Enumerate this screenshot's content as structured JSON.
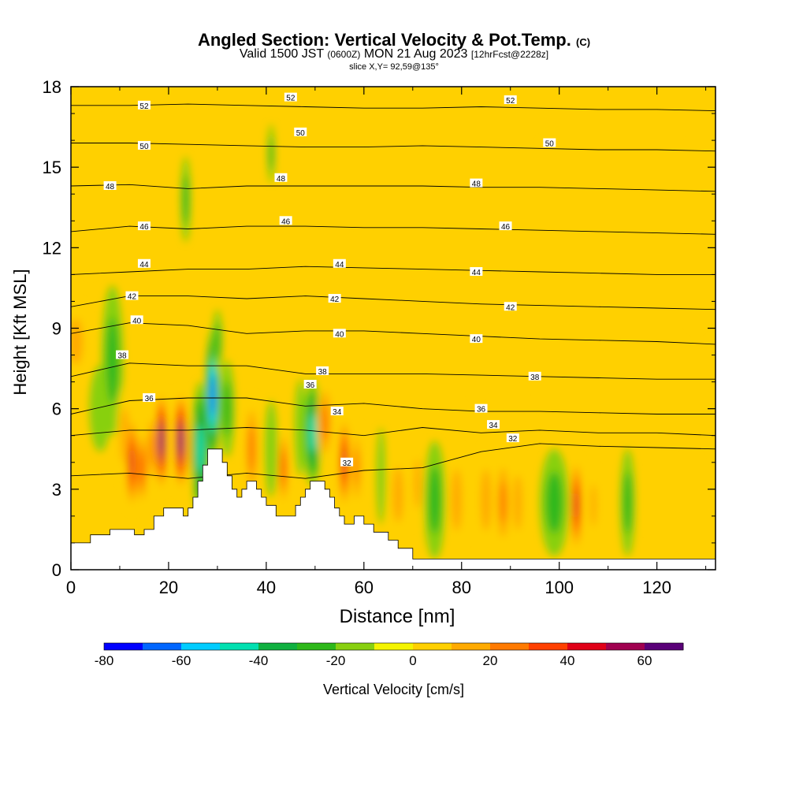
{
  "header": {
    "title_main": "Angled Section: Vertical Velocity & Pot.Temp.",
    "title_unit": "(C)",
    "valid_prefix": "Valid 1500 JST",
    "valid_utc": "(0600Z)",
    "valid_date": "MON 21 Aug 2023",
    "forecast": "[12hrFcst@2228z]",
    "slice": "slice X,Y= 92,59@135°"
  },
  "chart_data": {
    "type": "heatmap",
    "xlabel": "Distance [nm]",
    "ylabel": "Height [Kft MSL]",
    "xlim": [
      0,
      132
    ],
    "ylim": [
      0,
      18
    ],
    "x_ticks": [
      "0",
      "20",
      "40",
      "60",
      "80",
      "100",
      "120"
    ],
    "y_ticks": [
      "0",
      "3",
      "6",
      "9",
      "12",
      "15",
      "18"
    ],
    "colorbar": {
      "label": "Vertical Velocity [cm/s]",
      "range": [
        -80,
        70
      ],
      "step": 10,
      "tick_labels": [
        "-80",
        "-60",
        "-40",
        "-20",
        "0",
        "20",
        "40",
        "60"
      ],
      "colors": [
        "#0000ff",
        "#0066ff",
        "#00ccff",
        "#00e0b0",
        "#10b040",
        "#2eb81a",
        "#88d010",
        "#f4f400",
        "#ffd000",
        "#ffaa00",
        "#ff7a00",
        "#ff4000",
        "#e00018",
        "#a00050",
        "#5a0078"
      ]
    },
    "terrain": [
      [
        0,
        1.0
      ],
      [
        4,
        1.0
      ],
      [
        4,
        1.3
      ],
      [
        8,
        1.3
      ],
      [
        8,
        1.5
      ],
      [
        13,
        1.5
      ],
      [
        13,
        1.3
      ],
      [
        15,
        1.3
      ],
      [
        15,
        1.5
      ],
      [
        17,
        1.5
      ],
      [
        17,
        2.0
      ],
      [
        19,
        2.0
      ],
      [
        19,
        2.3
      ],
      [
        23,
        2.3
      ],
      [
        23,
        2.0
      ],
      [
        24,
        2.0
      ],
      [
        24,
        2.3
      ],
      [
        25,
        2.3
      ],
      [
        25,
        2.7
      ],
      [
        26,
        2.7
      ],
      [
        26,
        3.3
      ],
      [
        27,
        3.3
      ],
      [
        27,
        3.9
      ],
      [
        28,
        3.9
      ],
      [
        28,
        4.5
      ],
      [
        31,
        4.5
      ],
      [
        31,
        4.0
      ],
      [
        32,
        4.0
      ],
      [
        32,
        3.5
      ],
      [
        33,
        3.5
      ],
      [
        33,
        3.0
      ],
      [
        34,
        3.0
      ],
      [
        34,
        2.7
      ],
      [
        35,
        2.7
      ],
      [
        35,
        3.0
      ],
      [
        36,
        3.0
      ],
      [
        36,
        3.3
      ],
      [
        38,
        3.3
      ],
      [
        38,
        3.0
      ],
      [
        39,
        3.0
      ],
      [
        39,
        2.7
      ],
      [
        40,
        2.7
      ],
      [
        40,
        2.4
      ],
      [
        42,
        2.4
      ],
      [
        42,
        2.0
      ],
      [
        46,
        2.0
      ],
      [
        46,
        2.4
      ],
      [
        47,
        2.4
      ],
      [
        47,
        2.7
      ],
      [
        48,
        2.7
      ],
      [
        48,
        3.0
      ],
      [
        49,
        3.0
      ],
      [
        49,
        3.3
      ],
      [
        52,
        3.3
      ],
      [
        52,
        3.0
      ],
      [
        53,
        3.0
      ],
      [
        53,
        2.7
      ],
      [
        54,
        2.7
      ],
      [
        54,
        2.3
      ],
      [
        55,
        2.3
      ],
      [
        55,
        2.0
      ],
      [
        56,
        2.0
      ],
      [
        56,
        1.7
      ],
      [
        58,
        1.7
      ],
      [
        58,
        2.0
      ],
      [
        60,
        2.0
      ],
      [
        60,
        1.7
      ],
      [
        62,
        1.7
      ],
      [
        62,
        1.4
      ],
      [
        65,
        1.4
      ],
      [
        65,
        1.1
      ],
      [
        67,
        1.1
      ],
      [
        67,
        0.8
      ],
      [
        70,
        0.8
      ],
      [
        70,
        0.4
      ],
      [
        132,
        0.4
      ]
    ],
    "wcells": [
      {
        "x": 1,
        "y": 8.5,
        "rx": 2.5,
        "ry": 1.5,
        "w": 15
      },
      {
        "x": 6,
        "y": 6.0,
        "rx": 2.2,
        "ry": 1.6,
        "w": -18
      },
      {
        "x": 8.5,
        "y": 7.8,
        "rx": 2.2,
        "ry": 2.8,
        "w": -22
      },
      {
        "x": 11,
        "y": 5.0,
        "rx": 1.6,
        "ry": 1.8,
        "w": 15
      },
      {
        "x": 12.5,
        "y": 4.0,
        "rx": 1.3,
        "ry": 1.8,
        "w": 45
      },
      {
        "x": 14.5,
        "y": 3.8,
        "rx": 1.2,
        "ry": 1.5,
        "w": 35
      },
      {
        "x": 16.5,
        "y": 4.5,
        "rx": 1.0,
        "ry": 1.5,
        "w": 20
      },
      {
        "x": 18.5,
        "y": 4.8,
        "rx": 1.3,
        "ry": 1.9,
        "w": 60
      },
      {
        "x": 20.3,
        "y": 4.8,
        "rx": 0.9,
        "ry": 1.5,
        "w": -8
      },
      {
        "x": 22.5,
        "y": 4.8,
        "rx": 1.4,
        "ry": 1.9,
        "w": 65
      },
      {
        "x": 24.5,
        "y": 4.5,
        "rx": 0.9,
        "ry": 1.3,
        "w": 15
      },
      {
        "x": 26.5,
        "y": 4.5,
        "rx": 1.8,
        "ry": 2.5,
        "w": -45
      },
      {
        "x": 29,
        "y": 6.5,
        "rx": 1.5,
        "ry": 2.5,
        "w": -68
      },
      {
        "x": 30,
        "y": 8.5,
        "rx": 1.0,
        "ry": 1.2,
        "w": -25
      },
      {
        "x": 32,
        "y": 6.0,
        "rx": 1.5,
        "ry": 1.8,
        "w": -20
      },
      {
        "x": 23.5,
        "y": 13.8,
        "rx": 1.0,
        "ry": 1.6,
        "w": -20
      },
      {
        "x": 41,
        "y": 15.5,
        "rx": 0.7,
        "ry": 1.1,
        "w": -20
      },
      {
        "x": 37,
        "y": 4.5,
        "rx": 1.5,
        "ry": 2.0,
        "w": 25
      },
      {
        "x": 41,
        "y": 4.5,
        "rx": 1.3,
        "ry": 1.8,
        "w": -12
      },
      {
        "x": 43.5,
        "y": 3.8,
        "rx": 1.0,
        "ry": 1.5,
        "w": 30
      },
      {
        "x": 47,
        "y": 5.3,
        "rx": 1.2,
        "ry": 1.8,
        "w": -10
      },
      {
        "x": 49.5,
        "y": 5.1,
        "rx": 1.8,
        "ry": 2.0,
        "w": -42
      },
      {
        "x": 52,
        "y": 5.5,
        "rx": 1.6,
        "ry": 1.6,
        "w": 20
      },
      {
        "x": 56,
        "y": 4.0,
        "rx": 1.2,
        "ry": 1.8,
        "w": 42
      },
      {
        "x": 58.5,
        "y": 3.8,
        "rx": 1.0,
        "ry": 1.6,
        "w": 25
      },
      {
        "x": 63.5,
        "y": 3.5,
        "rx": 0.9,
        "ry": 1.8,
        "w": -18
      },
      {
        "x": 67,
        "y": 2.8,
        "rx": 1.8,
        "ry": 1.8,
        "w": 18
      },
      {
        "x": 71,
        "y": 3.2,
        "rx": 1.2,
        "ry": 1.6,
        "w": 12
      },
      {
        "x": 74.5,
        "y": 2.6,
        "rx": 2.2,
        "ry": 2.2,
        "w": -25
      },
      {
        "x": 79,
        "y": 2.6,
        "rx": 1.8,
        "ry": 2.0,
        "w": 15
      },
      {
        "x": 85,
        "y": 2.6,
        "rx": 1.8,
        "ry": 2.0,
        "w": 15
      },
      {
        "x": 88.5,
        "y": 2.5,
        "rx": 1.5,
        "ry": 1.8,
        "w": 25
      },
      {
        "x": 91.5,
        "y": 2.5,
        "rx": 1.5,
        "ry": 1.8,
        "w": 15
      },
      {
        "x": 99,
        "y": 2.5,
        "rx": 3.0,
        "ry": 2.0,
        "w": -25
      },
      {
        "x": 103.5,
        "y": 2.4,
        "rx": 1.2,
        "ry": 1.8,
        "w": 40
      },
      {
        "x": 107,
        "y": 2.4,
        "rx": 1.0,
        "ry": 1.4,
        "w": 10
      },
      {
        "x": 114,
        "y": 2.5,
        "rx": 1.5,
        "ry": 2.0,
        "w": -25
      },
      {
        "x": 121,
        "y": 2.6,
        "rx": 2.5,
        "ry": 2.0,
        "w": 8
      },
      {
        "x": 127,
        "y": 2.5,
        "rx": 2.5,
        "ry": 1.8,
        "w": 8
      },
      {
        "x": 83,
        "y": 12.5,
        "rx": 2.5,
        "ry": 6.0,
        "w": 8
      },
      {
        "x": 91,
        "y": 12.0,
        "rx": 2.5,
        "ry": 6.0,
        "w": 8
      },
      {
        "x": 97,
        "y": 11.0,
        "rx": 2.0,
        "ry": 5.0,
        "w": 6
      },
      {
        "x": 72,
        "y": 14.5,
        "rx": 2.0,
        "ry": 3.5,
        "w": 6
      },
      {
        "x": 60,
        "y": 9.5,
        "rx": 2.0,
        "ry": 3.0,
        "w": 6
      },
      {
        "x": 128,
        "y": 12.5,
        "rx": 3.0,
        "ry": 3.5,
        "w": 8
      },
      {
        "x": 130,
        "y": 17.0,
        "rx": 1.5,
        "ry": 1.5,
        "w": 8
      },
      {
        "x": 4,
        "y": 14.0,
        "rx": 2.0,
        "ry": 3.0,
        "w": 6
      }
    ],
    "isentropes": [
      {
        "value": 52,
        "y": [
          17.3,
          17.3,
          17.35,
          17.3,
          17.25,
          17.2,
          17.2,
          17.25,
          17.2,
          17.15,
          17.15,
          17.1
        ]
      },
      {
        "value": 50,
        "y": [
          15.9,
          15.9,
          15.85,
          15.8,
          15.75,
          15.75,
          15.8,
          15.75,
          15.7,
          15.65,
          15.65,
          15.6
        ]
      },
      {
        "value": 48,
        "y": [
          14.3,
          14.35,
          14.2,
          14.3,
          14.3,
          14.3,
          14.3,
          14.25,
          14.25,
          14.2,
          14.15,
          14.1
        ]
      },
      {
        "value": 46,
        "y": [
          12.6,
          12.8,
          12.7,
          12.8,
          12.8,
          12.75,
          12.75,
          12.7,
          12.65,
          12.6,
          12.55,
          12.5
        ]
      },
      {
        "value": 44,
        "y": [
          11.0,
          11.1,
          11.2,
          11.2,
          11.3,
          11.25,
          11.2,
          11.15,
          11.1,
          11.05,
          11.0,
          11.0
        ]
      },
      {
        "value": 42,
        "y": [
          9.8,
          10.2,
          10.2,
          10.1,
          10.2,
          10.1,
          10.0,
          9.9,
          9.85,
          9.8,
          9.75,
          9.7
        ]
      },
      {
        "value": 40,
        "y": [
          8.8,
          9.2,
          9.1,
          8.8,
          8.9,
          8.9,
          8.8,
          8.7,
          8.6,
          8.55,
          8.5,
          8.4
        ]
      },
      {
        "value": 38,
        "y": [
          7.2,
          7.7,
          7.6,
          7.6,
          7.3,
          7.3,
          7.3,
          7.25,
          7.2,
          7.15,
          7.1,
          7.1
        ]
      },
      {
        "value": 36,
        "y": [
          5.8,
          6.3,
          6.4,
          6.4,
          6.1,
          6.2,
          6.0,
          5.9,
          5.9,
          5.85,
          5.8,
          5.8
        ]
      },
      {
        "value": 34,
        "y": [
          5.0,
          5.2,
          5.2,
          5.3,
          5.2,
          5.0,
          5.3,
          5.1,
          5.2,
          5.1,
          5.1,
          5.0
        ]
      },
      {
        "value": 32,
        "y": [
          3.5,
          3.6,
          3.4,
          3.6,
          3.4,
          3.7,
          3.8,
          4.4,
          4.7,
          4.6,
          4.55,
          4.5
        ]
      }
    ],
    "contour_labels": [
      {
        "text": "52",
        "x": 15,
        "y": 17.3
      },
      {
        "text": "52",
        "x": 45,
        "y": 17.6
      },
      {
        "text": "52",
        "x": 90,
        "y": 17.5
      },
      {
        "text": "50",
        "x": 15,
        "y": 15.8
      },
      {
        "text": "50",
        "x": 47,
        "y": 16.3
      },
      {
        "text": "50",
        "x": 98,
        "y": 15.9
      },
      {
        "text": "48",
        "x": 8,
        "y": 14.3
      },
      {
        "text": "48",
        "x": 43,
        "y": 14.6
      },
      {
        "text": "48",
        "x": 83,
        "y": 14.4
      },
      {
        "text": "46",
        "x": 15,
        "y": 12.8
      },
      {
        "text": "46",
        "x": 44,
        "y": 13.0
      },
      {
        "text": "46",
        "x": 89,
        "y": 12.8
      },
      {
        "text": "44",
        "x": 15,
        "y": 11.4
      },
      {
        "text": "44",
        "x": 55,
        "y": 11.4
      },
      {
        "text": "44",
        "x": 83,
        "y": 11.1
      },
      {
        "text": "42",
        "x": 12.5,
        "y": 10.2
      },
      {
        "text": "42",
        "x": 54,
        "y": 10.1
      },
      {
        "text": "42",
        "x": 90,
        "y": 9.8
      },
      {
        "text": "40",
        "x": 13.5,
        "y": 9.3
      },
      {
        "text": "40",
        "x": 55,
        "y": 8.8
      },
      {
        "text": "40",
        "x": 83,
        "y": 8.6
      },
      {
        "text": "38",
        "x": 10.5,
        "y": 8.0
      },
      {
        "text": "38",
        "x": 51.5,
        "y": 7.4
      },
      {
        "text": "38",
        "x": 95,
        "y": 7.2
      },
      {
        "text": "36",
        "x": 16,
        "y": 6.4
      },
      {
        "text": "36",
        "x": 49,
        "y": 6.9
      },
      {
        "text": "36",
        "x": 84,
        "y": 6.0
      },
      {
        "text": "34",
        "x": 54.5,
        "y": 5.9
      },
      {
        "text": "34",
        "x": 86.5,
        "y": 5.4
      },
      {
        "text": "32",
        "x": 56.5,
        "y": 4.0
      },
      {
        "text": "32",
        "x": 90.5,
        "y": 4.9
      }
    ]
  }
}
